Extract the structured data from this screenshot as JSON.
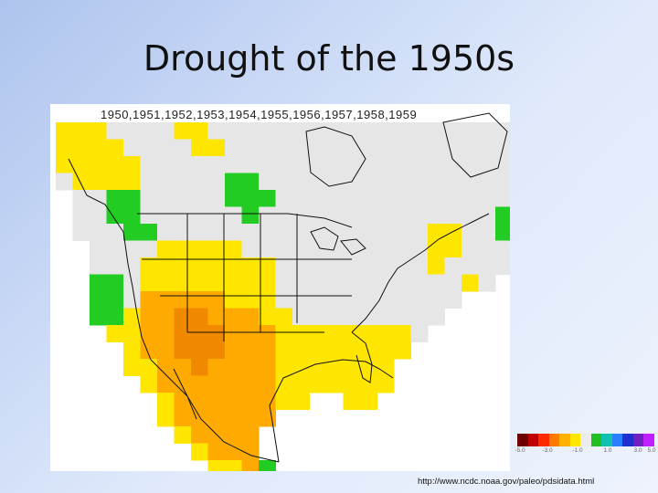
{
  "slide": {
    "title": "Drought of the 1950s"
  },
  "map": {
    "years_label": "1950,1951,1952,1953,1954,1955,1956,1957,1958,1959",
    "colors": {
      "severe_drought": "#f08800",
      "moderate_drought": "#ffaa00",
      "mild_drought": "#ffe600",
      "near_normal": "#e6e6e6",
      "wet": "#22cc22",
      "outline": "#111111"
    }
  },
  "legend": {
    "colors": [
      "#6e0000",
      "#c00000",
      "#ff2a00",
      "#ff7a00",
      "#ffb000",
      "#ffe600",
      "#ececec",
      "#20c020",
      "#10c0b0",
      "#2a7fff",
      "#1f2fd0",
      "#7020c0",
      "#c020ff"
    ],
    "tick_labels": [
      "-5.0",
      "-3.0",
      "-1.0",
      "1.0",
      "3.0",
      "5.0"
    ]
  },
  "source": {
    "url": "http://www.ncdc.noaa.gov/paleo/pdsidata.html"
  }
}
